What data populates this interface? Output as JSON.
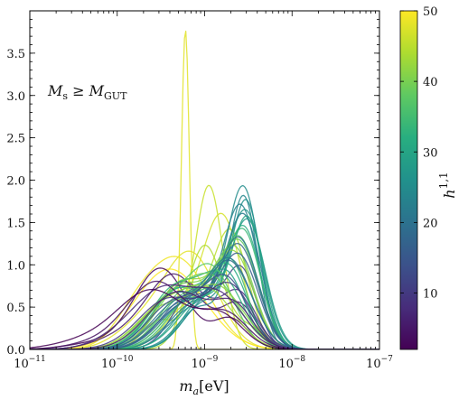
{
  "chart_data": {
    "type": "line",
    "xscale": "log",
    "xlim": [
      1e-11,
      1e-07
    ],
    "ylim": [
      0,
      4.0
    ],
    "xlabel_base": "m",
    "xlabel_sub": "a",
    "xlabel_unit": "[eV]",
    "ylabel": "",
    "annotation_parts": [
      "M",
      "s",
      " ≥ M",
      "GUT"
    ],
    "x_tick_labels": [
      {
        "base": "10",
        "exp": "−11",
        "value": 1e-11
      },
      {
        "base": "10",
        "exp": "−10",
        "value": 1e-10
      },
      {
        "base": "10",
        "exp": "−9",
        "value": 1e-09
      },
      {
        "base": "10",
        "exp": "−8",
        "value": 1e-08
      },
      {
        "base": "10",
        "exp": "−7",
        "value": 1e-07
      }
    ],
    "y_ticks": [
      0.0,
      0.5,
      1.0,
      1.5,
      2.0,
      2.5,
      3.0,
      3.5
    ],
    "y_tick_labels": [
      "0.0",
      "0.5",
      "1.0",
      "1.5",
      "2.0",
      "2.5",
      "3.0",
      "3.5"
    ],
    "colorbar": {
      "label_base": "h",
      "label_sup": "1,1",
      "range": [
        2,
        50
      ],
      "ticks": [
        10,
        20,
        30,
        40,
        50
      ],
      "tick_labels": [
        "10",
        "20",
        "30",
        "40",
        "50"
      ],
      "colormap": "viridis"
    },
    "legend": "none",
    "grid": false,
    "series": [
      {
        "h11": 48,
        "components": [
          [
            -9.22,
            0.045,
            3.78
          ]
        ]
      },
      {
        "h11": 46,
        "components": [
          [
            -8.95,
            0.16,
            1.93
          ],
          [
            -9.5,
            0.2,
            0.35
          ]
        ]
      },
      {
        "h11": 47,
        "components": [
          [
            -8.8,
            0.22,
            1.55
          ],
          [
            -9.3,
            0.25,
            0.4
          ]
        ]
      },
      {
        "h11": 45,
        "components": [
          [
            -8.7,
            0.2,
            1.35
          ],
          [
            -9.2,
            0.25,
            0.5
          ]
        ]
      },
      {
        "h11": 44,
        "components": [
          [
            -9.0,
            0.2,
            1.22
          ],
          [
            -8.5,
            0.2,
            0.25
          ]
        ]
      },
      {
        "h11": 48,
        "components": [
          [
            -9.15,
            0.3,
            1.1
          ],
          [
            -9.7,
            0.3,
            0.3
          ]
        ]
      },
      {
        "h11": 49,
        "components": [
          [
            -9.3,
            0.35,
            1.05
          ],
          [
            -9.8,
            0.25,
            0.3
          ]
        ]
      },
      {
        "h11": 50,
        "components": [
          [
            -9.4,
            0.4,
            0.95
          ]
        ]
      },
      {
        "h11": 3,
        "components": [
          [
            -9.5,
            0.3,
            0.95
          ],
          [
            -10.2,
            0.35,
            0.08
          ],
          [
            -8.7,
            0.2,
            0.35
          ]
        ]
      },
      {
        "h11": 5,
        "components": [
          [
            -9.35,
            0.32,
            0.88
          ],
          [
            -8.6,
            0.2,
            0.5
          ],
          [
            -10.0,
            0.3,
            0.12
          ]
        ]
      },
      {
        "h11": 8,
        "components": [
          [
            -9.25,
            0.3,
            0.8
          ],
          [
            -8.6,
            0.2,
            0.62
          ]
        ]
      },
      {
        "h11": 12,
        "components": [
          [
            -9.1,
            0.25,
            0.72
          ],
          [
            -8.58,
            0.18,
            0.9
          ]
        ]
      },
      {
        "h11": 25,
        "components": [
          [
            -8.55,
            0.18,
            1.82
          ],
          [
            -9.0,
            0.25,
            0.55
          ]
        ]
      },
      {
        "h11": 24,
        "components": [
          [
            -8.55,
            0.16,
            1.75
          ],
          [
            -9.05,
            0.25,
            0.5
          ]
        ]
      },
      {
        "h11": 26,
        "components": [
          [
            -8.52,
            0.17,
            1.68
          ],
          [
            -9.0,
            0.25,
            0.55
          ]
        ]
      },
      {
        "h11": 23,
        "components": [
          [
            -8.58,
            0.2,
            1.6
          ],
          [
            -9.1,
            0.3,
            0.5
          ]
        ]
      },
      {
        "h11": 27,
        "components": [
          [
            -8.52,
            0.2,
            1.55
          ],
          [
            -9.0,
            0.25,
            0.6
          ]
        ]
      },
      {
        "h11": 22,
        "components": [
          [
            -8.55,
            0.2,
            1.5
          ],
          [
            -9.1,
            0.3,
            0.55
          ]
        ]
      },
      {
        "h11": 28,
        "components": [
          [
            -8.5,
            0.2,
            1.45
          ],
          [
            -9.05,
            0.28,
            0.6
          ]
        ]
      },
      {
        "h11": 30,
        "components": [
          [
            -8.5,
            0.18,
            1.42
          ],
          [
            -9.0,
            0.3,
            0.6
          ]
        ]
      },
      {
        "h11": 32,
        "components": [
          [
            -8.55,
            0.2,
            1.38
          ],
          [
            -9.15,
            0.3,
            0.6
          ]
        ]
      },
      {
        "h11": 34,
        "components": [
          [
            -8.55,
            0.2,
            1.3
          ],
          [
            -9.1,
            0.3,
            0.65
          ]
        ]
      },
      {
        "h11": 36,
        "components": [
          [
            -8.6,
            0.22,
            1.25
          ],
          [
            -9.2,
            0.3,
            0.65
          ]
        ]
      },
      {
        "h11": 38,
        "components": [
          [
            -8.6,
            0.22,
            1.2
          ],
          [
            -9.2,
            0.3,
            0.7
          ]
        ]
      },
      {
        "h11": 40,
        "components": [
          [
            -8.65,
            0.22,
            1.12
          ],
          [
            -9.25,
            0.3,
            0.75
          ]
        ]
      },
      {
        "h11": 42,
        "components": [
          [
            -8.65,
            0.22,
            1.05
          ],
          [
            -9.25,
            0.3,
            0.8
          ]
        ]
      },
      {
        "h11": 20,
        "components": [
          [
            -8.6,
            0.22,
            1.25
          ],
          [
            -9.2,
            0.3,
            0.55
          ]
        ]
      },
      {
        "h11": 18,
        "components": [
          [
            -8.6,
            0.22,
            1.15
          ],
          [
            -9.2,
            0.32,
            0.55
          ]
        ]
      },
      {
        "h11": 16,
        "components": [
          [
            -8.6,
            0.22,
            1.05
          ],
          [
            -9.2,
            0.3,
            0.6
          ]
        ]
      },
      {
        "h11": 35,
        "components": [
          [
            -8.7,
            0.2,
            0.95
          ],
          [
            -9.3,
            0.32,
            0.72
          ]
        ]
      },
      {
        "h11": 31,
        "components": [
          [
            -8.72,
            0.22,
            0.9
          ],
          [
            -9.3,
            0.3,
            0.7
          ]
        ]
      },
      {
        "h11": 29,
        "components": [
          [
            -8.75,
            0.22,
            0.85
          ],
          [
            -9.35,
            0.3,
            0.65
          ]
        ]
      },
      {
        "h11": 33,
        "components": [
          [
            -8.8,
            0.25,
            0.8
          ],
          [
            -9.35,
            0.28,
            0.7
          ]
        ]
      },
      {
        "h11": 37,
        "components": [
          [
            -8.9,
            0.25,
            0.85
          ],
          [
            -9.4,
            0.3,
            0.55
          ]
        ]
      },
      {
        "h11": 39,
        "components": [
          [
            -8.9,
            0.3,
            0.78
          ],
          [
            -9.45,
            0.3,
            0.5
          ]
        ]
      },
      {
        "h11": 41,
        "components": [
          [
            -8.85,
            0.3,
            0.72
          ],
          [
            -9.5,
            0.3,
            0.45
          ]
        ]
      },
      {
        "h11": 43,
        "components": [
          [
            -8.95,
            0.3,
            0.65
          ],
          [
            -9.5,
            0.3,
            0.45
          ]
        ]
      },
      {
        "h11": 19,
        "components": [
          [
            -8.7,
            0.25,
            0.98
          ],
          [
            -9.3,
            0.3,
            0.5
          ]
        ]
      },
      {
        "h11": 21,
        "components": [
          [
            -8.7,
            0.25,
            1.0
          ],
          [
            -9.3,
            0.3,
            0.55
          ]
        ]
      },
      {
        "h11": 14,
        "components": [
          [
            -8.75,
            0.25,
            0.8
          ],
          [
            -9.35,
            0.3,
            0.55
          ]
        ]
      },
      {
        "h11": 10,
        "components": [
          [
            -8.7,
            0.25,
            0.7
          ],
          [
            -9.4,
            0.35,
            0.6
          ]
        ]
      },
      {
        "h11": 7,
        "components": [
          [
            -8.8,
            0.28,
            0.55
          ],
          [
            -9.45,
            0.35,
            0.7
          ],
          [
            -10.0,
            0.3,
            0.1
          ]
        ]
      },
      {
        "h11": 4,
        "components": [
          [
            -9.55,
            0.35,
            0.8
          ],
          [
            -8.75,
            0.25,
            0.4
          ],
          [
            -10.3,
            0.3,
            0.06
          ]
        ]
      },
      {
        "h11": 2,
        "components": [
          [
            -9.6,
            0.4,
            0.7
          ],
          [
            -8.8,
            0.25,
            0.35
          ],
          [
            -10.4,
            0.35,
            0.08
          ]
        ]
      },
      {
        "h11": 6,
        "components": [
          [
            -9.3,
            0.35,
            0.68
          ],
          [
            -8.65,
            0.22,
            0.45
          ]
        ]
      }
    ]
  }
}
